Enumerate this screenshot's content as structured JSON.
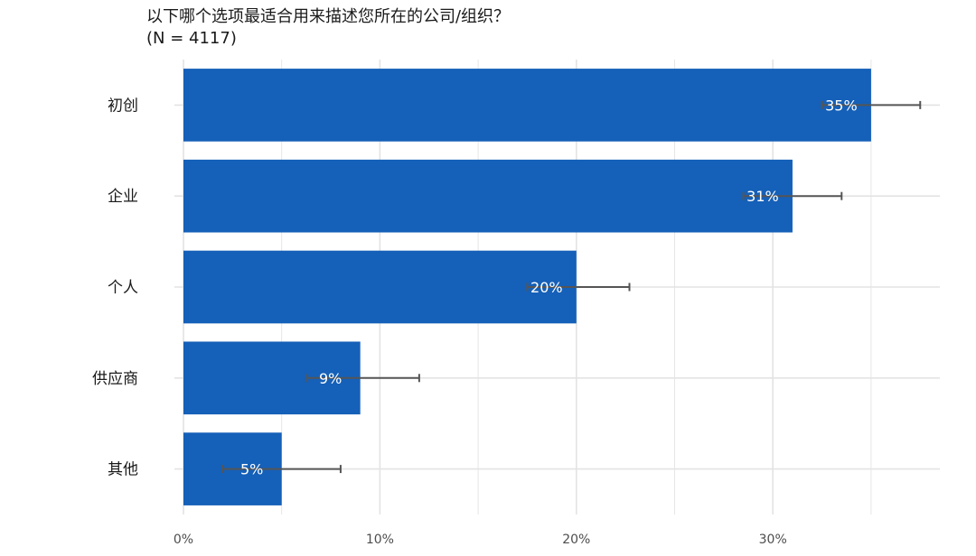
{
  "chart_data": {
    "type": "bar",
    "orientation": "horizontal",
    "title": "以下哪个选项最适合用来描述您所在的公司/组织？",
    "subtitle": "(N = 4117)",
    "categories": [
      "初创",
      "企业",
      "个人",
      "供应商",
      "其他"
    ],
    "values": [
      35,
      31,
      20,
      9,
      5
    ],
    "data_labels": [
      "35%",
      "31%",
      "20%",
      "9%",
      "5%"
    ],
    "error_low": [
      32.5,
      28.5,
      17.5,
      6.3,
      2.0
    ],
    "error_high": [
      37.5,
      33.5,
      22.7,
      12.0,
      8.0
    ],
    "x_ticks": [
      0,
      10,
      20,
      30
    ],
    "x_tick_labels": [
      "0%",
      "10%",
      "20%",
      "30%"
    ],
    "xlim": [
      0,
      38.5
    ],
    "xlabel": "",
    "ylabel": "",
    "grid": true,
    "bar_color": "#1560b8",
    "errorbar_color": "#555555",
    "grid_color": "#e3e3e3"
  }
}
